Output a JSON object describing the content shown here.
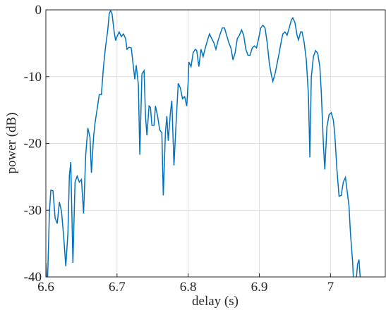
{
  "chart_data": {
    "type": "line",
    "xlabel": "delay (s)",
    "ylabel": "power (dB)",
    "xlim": [
      6.6,
      7.077
    ],
    "ylim": [
      -40,
      0
    ],
    "xticks": [
      6.6,
      6.7,
      6.8,
      6.9,
      7
    ],
    "yticks": [
      -40,
      -30,
      -20,
      -10,
      0
    ],
    "grid": true,
    "series": [
      {
        "color": "#0072bd",
        "x": [
          6.6,
          6.602,
          6.605,
          6.607,
          6.61,
          6.613,
          6.616,
          6.619,
          6.622,
          6.625,
          6.628,
          6.631,
          6.633,
          6.635,
          6.638,
          6.641,
          6.644,
          6.647,
          6.65,
          6.653,
          6.656,
          6.659,
          6.662,
          6.664,
          6.667,
          6.669,
          6.672,
          6.675,
          6.678,
          6.681,
          6.684,
          6.687,
          6.689,
          6.691,
          6.693,
          6.696,
          6.698,
          6.7,
          6.703,
          6.706,
          6.709,
          6.712,
          6.714,
          6.717,
          6.72,
          6.723,
          6.725,
          6.727,
          6.73,
          6.732,
          6.735,
          6.738,
          6.74,
          6.742,
          6.745,
          6.747,
          6.749,
          6.752,
          6.754,
          6.757,
          6.76,
          6.763,
          6.765,
          6.768,
          6.77,
          6.772,
          6.775,
          6.777,
          6.78,
          6.783,
          6.786,
          6.789,
          6.792,
          6.795,
          6.798,
          6.8,
          6.801,
          6.804,
          6.807,
          6.81,
          6.812,
          6.815,
          6.818,
          6.821,
          6.824,
          6.827,
          6.83,
          6.833,
          6.836,
          6.839,
          6.842,
          6.845,
          6.848,
          6.851,
          6.854,
          6.857,
          6.86,
          6.863,
          6.866,
          6.869,
          6.872,
          6.875,
          6.878,
          6.881,
          6.884,
          6.887,
          6.89,
          6.893,
          6.896,
          6.899,
          6.902,
          6.905,
          6.908,
          6.911,
          6.914,
          6.917,
          6.919,
          6.922,
          6.925,
          6.928,
          6.931,
          6.933,
          6.936,
          6.939,
          6.942,
          6.945,
          6.947,
          6.95,
          6.953,
          6.955,
          6.958,
          6.96,
          6.963,
          6.966,
          6.969,
          6.971,
          6.973,
          6.976,
          6.979,
          6.982,
          6.985,
          6.987,
          6.99,
          6.992,
          6.995,
          6.998,
          7.001,
          7.004,
          7.006,
          7.009,
          7.012,
          7.015,
          7.018,
          7.021,
          7.023,
          7.026,
          7.028,
          7.031,
          7.033,
          7.035,
          7.038,
          7.04,
          7.043
        ],
        "values": [
          -37.9,
          -42,
          -30.2,
          -27,
          -27.1,
          -31.2,
          -32,
          -28.8,
          -30.2,
          -33.9,
          -38.4,
          -33.4,
          -24.9,
          -22.8,
          -37.9,
          -25.8,
          -24.9,
          -25.8,
          -25.4,
          -30.5,
          -21.7,
          -17.7,
          -19.1,
          -24.4,
          -19.1,
          -17,
          -14.9,
          -12.7,
          -12.7,
          -8.5,
          -5.4,
          -3,
          -0.6,
          -0.1,
          -0.6,
          -3.3,
          -4.6,
          -4,
          -3.3,
          -4,
          -3.6,
          -4.3,
          -5.9,
          -5.6,
          -5.7,
          -8.5,
          -10.4,
          -8.3,
          -11.2,
          -21.7,
          -9.6,
          -9.1,
          -15.9,
          -18.8,
          -14.4,
          -14.6,
          -17.3,
          -17.3,
          -14.4,
          -15.9,
          -18,
          -18.4,
          -27.8,
          -18.4,
          -15.9,
          -19.6,
          -15.4,
          -13.6,
          -23.3,
          -17,
          -11,
          -11.7,
          -13.3,
          -13,
          -14.4,
          -10.7,
          -7.8,
          -8.5,
          -6.4,
          -5.9,
          -6.1,
          -8.5,
          -5.9,
          -7,
          -5.7,
          -4.6,
          -3.6,
          -4.3,
          -4.9,
          -5.9,
          -4.6,
          -3.6,
          -2.7,
          -2.7,
          -3.8,
          -4.9,
          -5.7,
          -7.5,
          -6.4,
          -4.3,
          -3.8,
          -3,
          -3.8,
          -5.9,
          -6.8,
          -6.8,
          -5.7,
          -5.4,
          -5.7,
          -4.3,
          -2.7,
          -2.3,
          -2.7,
          -4.9,
          -8,
          -9.8,
          -10.7,
          -9.6,
          -8,
          -6.4,
          -4.6,
          -3.6,
          -3.3,
          -3.8,
          -2.7,
          -1.5,
          -1.2,
          -1.9,
          -3.8,
          -4.5,
          -3.3,
          -3.3,
          -4.9,
          -7.5,
          -12.8,
          -22.1,
          -10.1,
          -7,
          -6.1,
          -6.5,
          -8.5,
          -12.2,
          -20.2,
          -23.9,
          -17.5,
          -15.7,
          -15.4,
          -16.5,
          -18.6,
          -23.9,
          -27.9,
          -27.8,
          -25.8,
          -25.1,
          -26.8,
          -29.4,
          -33.4,
          -37.6,
          -42,
          -42,
          -38.1,
          -37.4,
          -42
        ]
      }
    ]
  }
}
